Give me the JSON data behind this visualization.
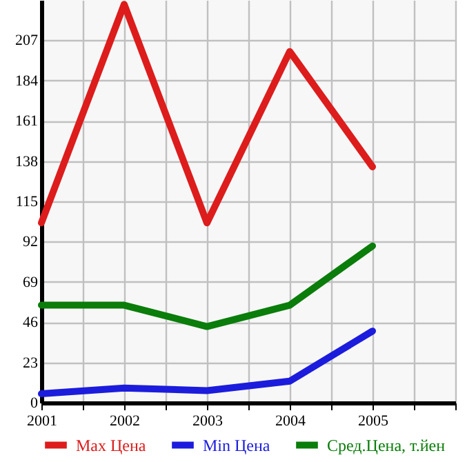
{
  "chart_data": {
    "type": "line",
    "x": [
      2001,
      2002,
      2003,
      2004,
      2005
    ],
    "series": [
      {
        "name": "Max Цена",
        "color": "#dd1c1c",
        "values": [
          102.7,
          227.5,
          102.7,
          200.6,
          134.7
        ]
      },
      {
        "name": "Min Цена",
        "color": "#1c1cdd",
        "values": [
          5.1,
          8.4,
          6.9,
          12.3,
          40.9
        ]
      },
      {
        "name": "Сред.Цена, т.йен",
        "color": "#0a7d0a",
        "values": [
          55.7,
          55.7,
          43.5,
          55.7,
          89.5
        ]
      }
    ],
    "xlim": [
      2001,
      2006
    ],
    "xticks": [
      2001,
      {
        "value": 2001.5,
        "label": null
      },
      2002,
      {
        "value": 2002.5,
        "label": null
      },
      2003,
      {
        "value": 2003.5,
        "label": null
      },
      2004,
      {
        "value": 2004.5,
        "label": null
      },
      2005,
      {
        "value": 2005.5,
        "label": null
      },
      {
        "value": 2006,
        "label": null
      }
    ],
    "ylim": [
      0,
      230
    ],
    "yticks": [
      0,
      23,
      46,
      69,
      92,
      115,
      138,
      161,
      184,
      207
    ],
    "grid": true,
    "legend": "bottom",
    "marker": "none",
    "line_style": "solid"
  }
}
